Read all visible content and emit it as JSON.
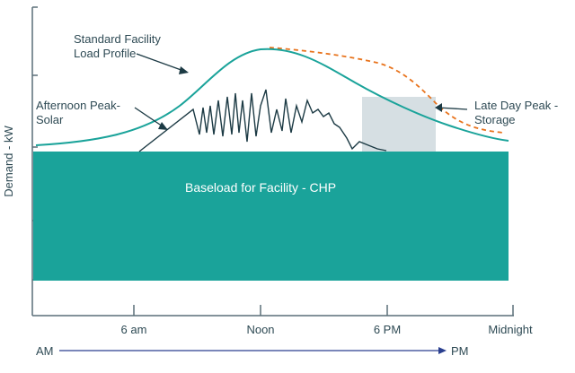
{
  "labels": {
    "y_axis": "Demand - kW",
    "standard_profile": [
      "Standard Facility",
      "Load Profile"
    ],
    "solar": [
      "Afternoon Peak-",
      "Solar"
    ],
    "storage": [
      "Late Day Peak -",
      "Storage"
    ],
    "baseload": "Baseload for Facility - CHP",
    "am": "AM",
    "pm": "PM"
  },
  "x_ticks": [
    "6 am",
    "Noon",
    "6 PM",
    "Midnight"
  ],
  "colors": {
    "baseload": "#1aa39a",
    "standard_curve": "#1aa39a",
    "solar_line": "#1c3a44",
    "storage_box": "#d6dfe3",
    "storage_curve": "#e8731c",
    "axis": "#5a6f78",
    "text": "#2e4a54",
    "baseload_text": "#ffffff"
  }
}
